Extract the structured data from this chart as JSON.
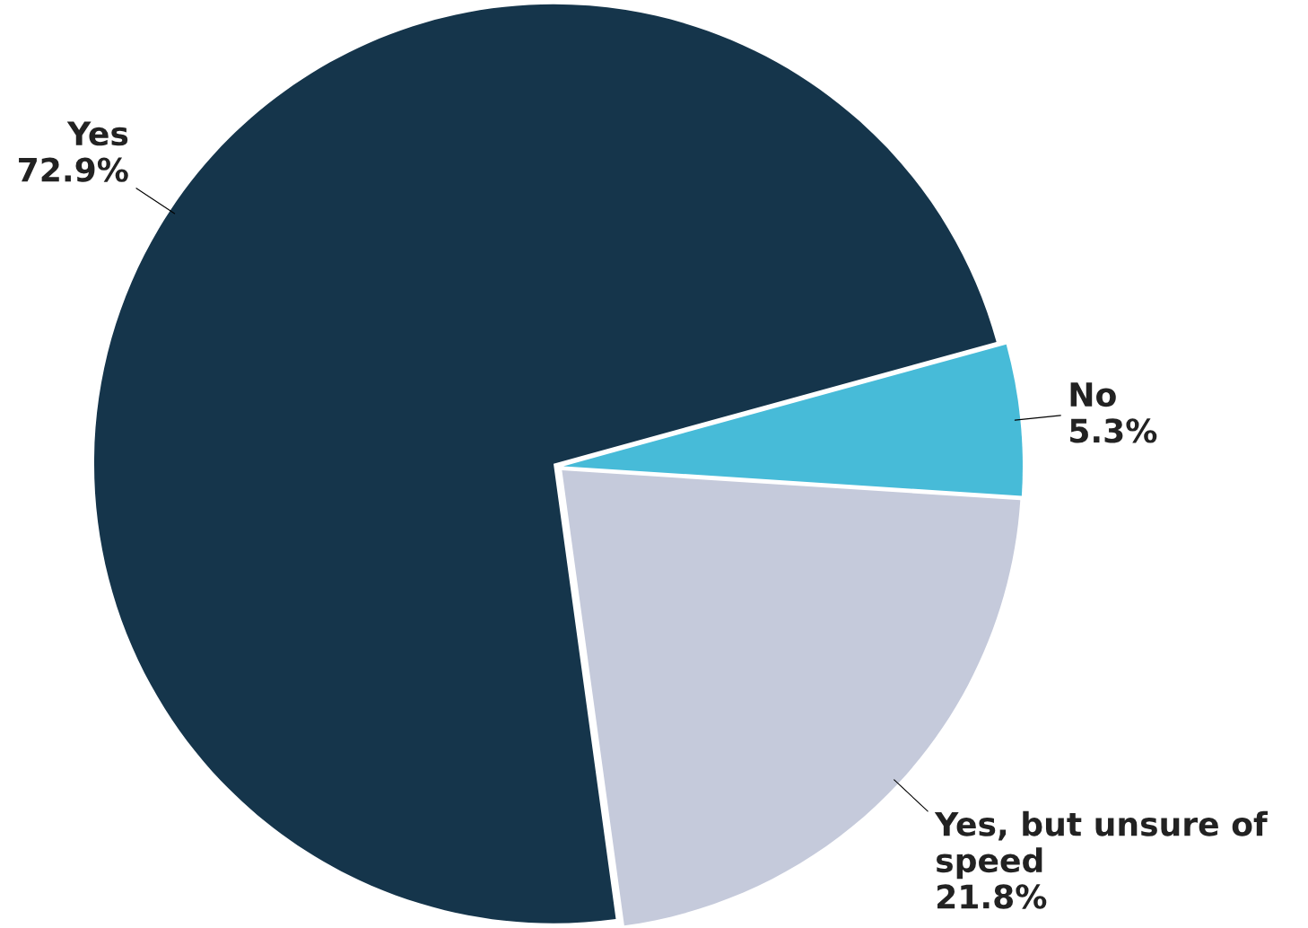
{
  "chart_data": {
    "type": "pie",
    "categories": [
      "Yes",
      "No",
      "Yes, but unsure of speed"
    ],
    "values": [
      72.9,
      5.3,
      21.8
    ],
    "colors": [
      "#15354b",
      "#47bbd8",
      "#c5cadb"
    ],
    "value_labels": [
      "72.9%",
      "5.3%",
      "21.8%"
    ]
  }
}
